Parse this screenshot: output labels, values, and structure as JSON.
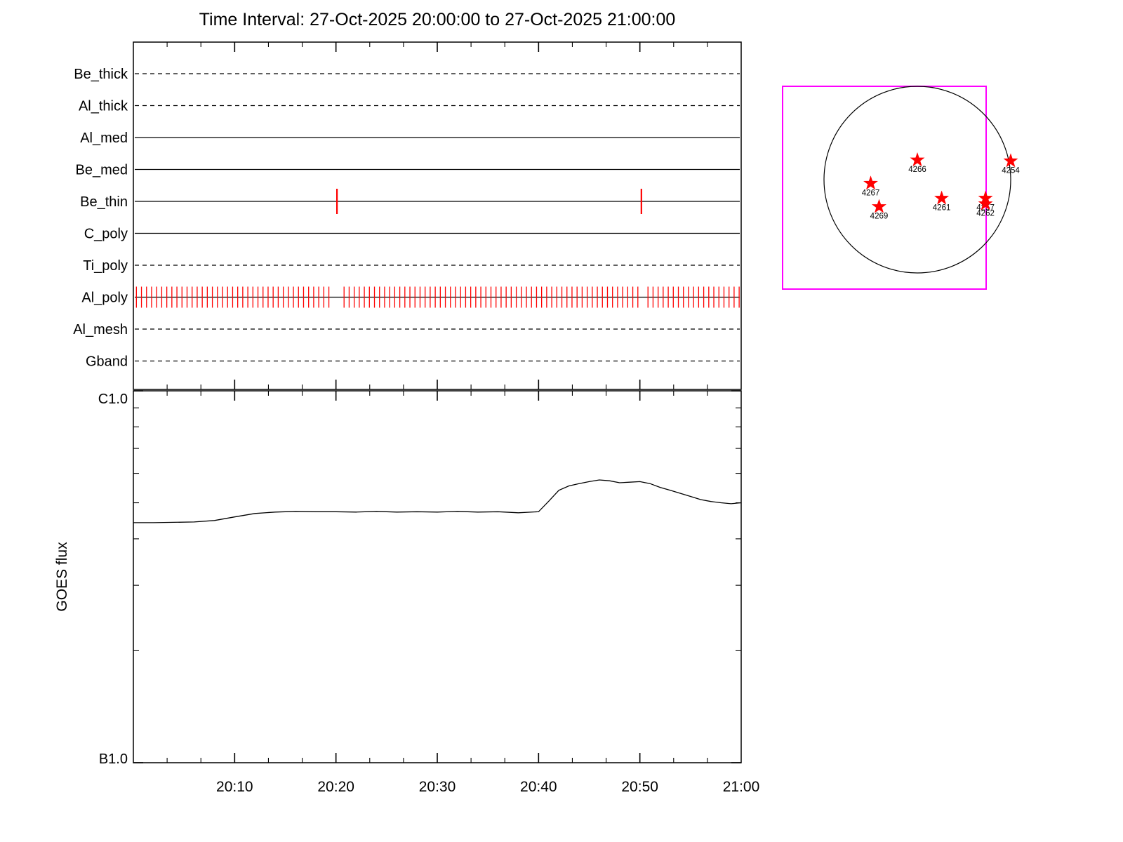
{
  "title": "Time Interval: 27-Oct-2025 20:00:00 to 27-Oct-2025 21:00:00",
  "colors": {
    "exposure_red": "#ff0000",
    "fov_magenta": "#ff00ff",
    "line_black": "#000000"
  },
  "chart_data": [
    {
      "type": "table",
      "name": "xrt-filter-exposure-timeline",
      "x_axis": {
        "start": "20:00",
        "end": "21:00",
        "duration_minutes": 60
      },
      "exposure_tick_color": "#ff0000",
      "filters": [
        {
          "name": "Be_thick",
          "style": "dashed",
          "exposures_min": []
        },
        {
          "name": "Al_thick",
          "style": "dashed",
          "exposures_min": []
        },
        {
          "name": "Al_med",
          "style": "solid",
          "exposures_min": []
        },
        {
          "name": "Be_med",
          "style": "solid",
          "exposures_min": []
        },
        {
          "name": "Be_thin",
          "style": "solid",
          "exposures_min": [
            20.1,
            50.15
          ]
        },
        {
          "name": "C_poly",
          "style": "solid",
          "exposures_min": []
        },
        {
          "name": "Ti_poly",
          "style": "dashed",
          "exposures_min": []
        },
        {
          "name": "Al_poly",
          "style": "solid",
          "exposures_min": [],
          "exposure_train": {
            "start_min": 0.3,
            "end_min": 59.85,
            "step_min": 0.5,
            "gaps_min": [
              [
                19.75,
                20.45
              ],
              [
                49.8,
                50.5
              ]
            ]
          }
        },
        {
          "name": "Al_mesh",
          "style": "dashed",
          "exposures_min": []
        },
        {
          "name": "Gband",
          "style": "dashed",
          "exposures_min": []
        }
      ]
    },
    {
      "type": "line",
      "name": "goes-flux",
      "ylabel": "GOES flux",
      "y_scale": "log",
      "y_top_label": "C1.0",
      "y_bottom_label": "B1.0",
      "y_units": "flux in B-class units (1e-7 W/m2), axis from B1.0 to C1.0",
      "x_tick_labels": [
        "20:10",
        "20:20",
        "20:30",
        "20:40",
        "20:50",
        "21:00"
      ],
      "x_minutes": [
        0,
        2,
        4,
        6,
        8,
        10,
        12,
        14,
        16,
        18,
        20,
        22,
        24,
        26,
        28,
        30,
        32,
        34,
        36,
        38,
        40,
        41,
        42,
        43,
        44,
        45,
        46,
        47,
        48,
        49,
        50,
        51,
        52,
        53,
        54,
        55,
        56,
        57,
        58,
        59,
        60
      ],
      "flux_b": [
        4.42,
        4.42,
        4.43,
        4.44,
        4.48,
        4.58,
        4.68,
        4.72,
        4.74,
        4.73,
        4.73,
        4.72,
        4.74,
        4.72,
        4.73,
        4.72,
        4.74,
        4.72,
        4.73,
        4.7,
        4.73,
        5.05,
        5.4,
        5.55,
        5.63,
        5.7,
        5.76,
        5.73,
        5.66,
        5.68,
        5.7,
        5.63,
        5.5,
        5.4,
        5.3,
        5.2,
        5.1,
        5.04,
        5.0,
        4.97,
        5.0
      ]
    },
    {
      "type": "scatter",
      "name": "solar-disk-active-regions",
      "marker": "star",
      "marker_color": "#ff0000",
      "fov_box_color": "#ff00ff",
      "regions": [
        {
          "noaa": "4266",
          "x": 0.0,
          "y": -0.21
        },
        {
          "noaa": "4254",
          "x": 1.0,
          "y": -0.2
        },
        {
          "noaa": "4267",
          "x": -0.5,
          "y": 0.04
        },
        {
          "noaa": "4269",
          "x": -0.41,
          "y": 0.29
        },
        {
          "noaa": "4261",
          "x": 0.26,
          "y": 0.2
        },
        {
          "noaa": "4257",
          "x": 0.73,
          "y": 0.2
        },
        {
          "noaa": "4262",
          "x": 0.73,
          "y": 0.26
        }
      ]
    }
  ]
}
